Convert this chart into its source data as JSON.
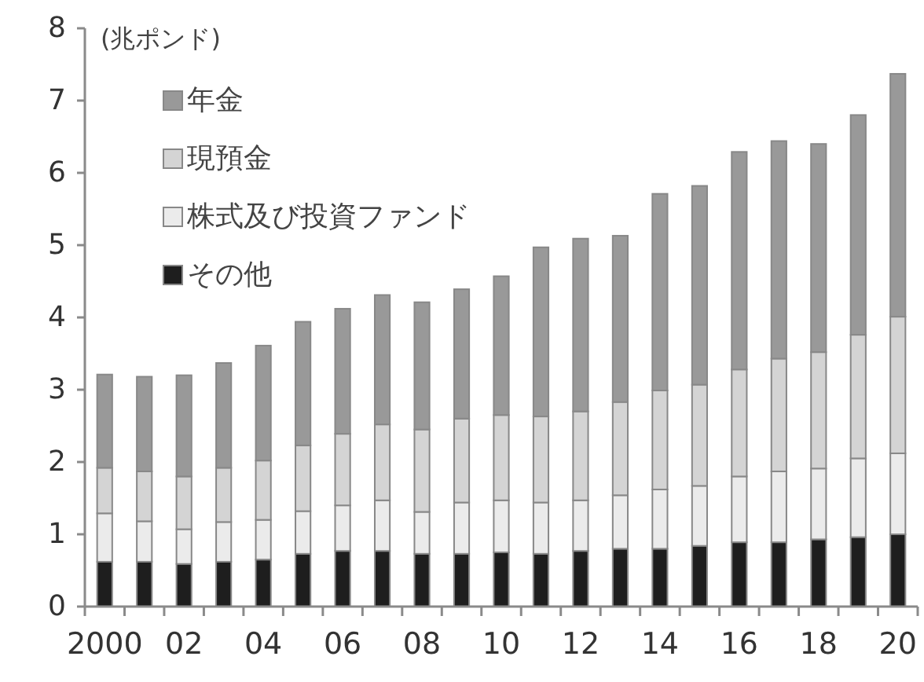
{
  "chart_data": {
    "type": "bar",
    "stacked": true,
    "ylabel": "(兆ポンド)",
    "categories": [
      "2000",
      null,
      "02",
      null,
      "04",
      null,
      "06",
      null,
      "08",
      null,
      "10",
      null,
      "12",
      null,
      "14",
      null,
      "16",
      null,
      "18",
      null,
      "20"
    ],
    "series": [
      {
        "name": "その他",
        "color": "#1e1e1e",
        "values": [
          0.62,
          0.62,
          0.59,
          0.62,
          0.65,
          0.73,
          0.77,
          0.77,
          0.73,
          0.73,
          0.75,
          0.73,
          0.77,
          0.8,
          0.8,
          0.84,
          0.89,
          0.89,
          0.93,
          0.96,
          1.0
        ]
      },
      {
        "name": "株式及び投資ファンド",
        "color": "#ebebeb",
        "values": [
          0.67,
          0.56,
          0.48,
          0.55,
          0.55,
          0.59,
          0.63,
          0.7,
          0.58,
          0.71,
          0.72,
          0.71,
          0.7,
          0.74,
          0.82,
          0.83,
          0.91,
          0.98,
          0.98,
          1.09,
          1.12
        ]
      },
      {
        "name": "現預金",
        "color": "#d4d4d4",
        "values": [
          0.63,
          0.69,
          0.73,
          0.75,
          0.82,
          0.91,
          0.99,
          1.05,
          1.14,
          1.16,
          1.18,
          1.19,
          1.23,
          1.29,
          1.37,
          1.4,
          1.48,
          1.56,
          1.61,
          1.71,
          1.89
        ]
      },
      {
        "name": "年金",
        "color": "#999999",
        "values": [
          1.29,
          1.31,
          1.4,
          1.45,
          1.59,
          1.71,
          1.73,
          1.79,
          1.76,
          1.79,
          1.92,
          2.34,
          2.39,
          2.3,
          2.72,
          2.75,
          3.01,
          3.01,
          2.88,
          3.04,
          3.36
        ]
      }
    ],
    "ylim": [
      0,
      8
    ],
    "yticks": [
      0,
      1,
      2,
      3,
      4,
      5,
      6,
      7,
      8
    ],
    "grid": false,
    "legend": "top left"
  }
}
